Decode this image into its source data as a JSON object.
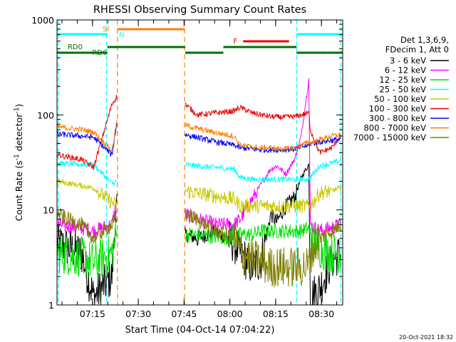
{
  "chart_data": {
    "type": "line",
    "title": "RHESSI Observing Summary Count Rates",
    "xlabel": "Start Time (04-Oct-14 07:04:22)",
    "ylabel_main": "Count Rate (s",
    "ylabel_sup1": "-1",
    "ylabel_mid": " detector",
    "ylabel_sup2": "-1",
    "ylabel_end": ")",
    "yscale": "log",
    "ylim": [
      1,
      1000
    ],
    "y_ticks": [
      1,
      10,
      100,
      1000
    ],
    "y_tick_labels": [
      "1",
      "10",
      "100",
      "1000"
    ],
    "xlim_min": [
      0,
      93.6
    ],
    "x_ticks_min": [
      11.63,
      26.63,
      41.63,
      56.63,
      71.63,
      86.63
    ],
    "x_tick_labels": [
      "07:15",
      "07:30",
      "07:45",
      "08:00",
      "08:15",
      "08:30"
    ],
    "gaps_min": [
      [
        19.8,
        42.0
      ]
    ],
    "series": [
      {
        "name": "3 - 6 keV",
        "color": "#000000",
        "x": [
          0,
          8,
          12,
          18,
          19.8,
          23,
          29,
          35,
          42,
          46,
          52,
          58,
          60,
          64,
          67,
          70,
          72,
          75,
          78,
          80,
          82.5,
          83,
          86,
          90,
          93
        ],
        "y": [
          4.5,
          3.5,
          1.2,
          2,
          16,
          null,
          null,
          null,
          5.5,
          5,
          6,
          4.5,
          3.5,
          2.5,
          3,
          9,
          7.5,
          11,
          14,
          22,
          30,
          1.2,
          1.5,
          3,
          3.5
        ]
      },
      {
        "name": "6 - 12 keV",
        "color": "#ff00ff",
        "x": [
          0,
          8,
          12,
          18,
          19.8,
          23,
          29,
          35,
          42,
          46,
          52,
          58,
          60,
          64,
          67,
          70,
          72,
          75,
          78,
          80,
          82.5,
          83,
          86,
          90,
          93
        ],
        "y": [
          7,
          6.5,
          6,
          7,
          13,
          null,
          null,
          null,
          9,
          8,
          7,
          7,
          8,
          13,
          19,
          27,
          29,
          24,
          35,
          60,
          240,
          7,
          6,
          6.5,
          7
        ]
      },
      {
        "name": "12 - 25 keV",
        "color": "#00e000",
        "x": [
          0,
          8,
          12,
          18,
          19.8,
          23,
          29,
          35,
          42,
          46,
          52,
          58,
          60,
          64,
          67,
          70,
          72,
          75,
          78,
          80,
          82.5,
          83,
          86,
          90,
          93
        ],
        "y": [
          3.5,
          3.2,
          2.8,
          3.5,
          6,
          null,
          null,
          null,
          5.5,
          5.5,
          5.2,
          5,
          5.5,
          5.5,
          6,
          6,
          6,
          6,
          6,
          6,
          6.5,
          5,
          4,
          3.5,
          3.5
        ]
      },
      {
        "name": "25 - 50 keV",
        "color": "#00ffff",
        "x": [
          0,
          8,
          12,
          18,
          19.8,
          23,
          29,
          35,
          42,
          46,
          52,
          58,
          60,
          64,
          67,
          70,
          72,
          75,
          78,
          80,
          82.5,
          83,
          86,
          90,
          93
        ],
        "y": [
          31,
          30,
          30,
          19,
          20,
          null,
          null,
          null,
          30,
          29,
          28,
          27,
          22,
          21,
          21,
          21,
          21,
          21,
          21,
          21,
          21,
          22,
          29,
          31,
          33
        ]
      },
      {
        "name": "50 - 100 keV",
        "color": "#c8c800",
        "x": [
          0,
          8,
          12,
          18,
          19.8,
          23,
          29,
          35,
          42,
          46,
          52,
          58,
          60,
          64,
          67,
          70,
          72,
          75,
          78,
          80,
          82.5,
          83,
          86,
          90,
          93
        ],
        "y": [
          20,
          18,
          17,
          12,
          11,
          null,
          null,
          null,
          16,
          15,
          14,
          13,
          11,
          11,
          11,
          11,
          11,
          11,
          11,
          11,
          11,
          11,
          15,
          16,
          17
        ]
      },
      {
        "name": "100 - 300 keV",
        "color": "#ee0000",
        "x": [
          0,
          8,
          12,
          18,
          19.8,
          23,
          29,
          35,
          42,
          46,
          52,
          58,
          60,
          64,
          67,
          70,
          72,
          75,
          78,
          80,
          82.5,
          83,
          86,
          90,
          93
        ],
        "y": [
          38,
          34,
          28,
          130,
          160,
          null,
          null,
          null,
          130,
          100,
          105,
          110,
          120,
          105,
          100,
          96,
          95,
          95,
          96,
          100,
          105,
          70,
          40,
          45,
          60
        ]
      },
      {
        "name": "300 - 800 keV",
        "color": "#0000ff",
        "x": [
          0,
          8,
          12,
          18,
          19.8,
          23,
          29,
          35,
          42,
          46,
          52,
          58,
          60,
          64,
          67,
          70,
          72,
          75,
          78,
          80,
          82.5,
          83,
          86,
          90,
          93
        ],
        "y": [
          63,
          60,
          58,
          38,
          90,
          null,
          null,
          null,
          62,
          58,
          52,
          48,
          45,
          44,
          43,
          43,
          43,
          43,
          44,
          46,
          48,
          50,
          52,
          54,
          56
        ]
      },
      {
        "name": "800 - 7000 keV",
        "color": "#ff8000",
        "x": [
          0,
          8,
          12,
          18,
          19.8,
          23,
          29,
          35,
          42,
          46,
          52,
          58,
          60,
          64,
          67,
          70,
          72,
          75,
          78,
          80,
          82.5,
          83,
          86,
          90,
          93
        ],
        "y": [
          75,
          70,
          66,
          42,
          95,
          null,
          null,
          null,
          78,
          72,
          65,
          60,
          48,
          46,
          45,
          45,
          44,
          44,
          45,
          48,
          52,
          50,
          55,
          60,
          62
        ]
      },
      {
        "name": "7000 - 15000 keV",
        "color": "#808000",
        "x": [
          0,
          8,
          12,
          18,
          19.8,
          23,
          29,
          35,
          42,
          46,
          52,
          58,
          60,
          64,
          67,
          70,
          72,
          75,
          78,
          80,
          82.5,
          83,
          86,
          90,
          93
        ],
        "y": [
          9,
          7,
          5,
          7,
          8,
          null,
          null,
          null,
          9,
          8,
          6,
          5,
          3.5,
          3,
          2.8,
          2.5,
          2.5,
          2.5,
          2.5,
          2.5,
          2.6,
          3.5,
          5,
          6,
          7
        ]
      }
    ],
    "legend_header": [
      "Det 1,3,6,9,",
      "FDecim 1, Att 0"
    ],
    "legend_position": "right",
    "flag_bars": [
      {
        "label": "SI",
        "color": "#ff8000",
        "spans": [
          [
            19.8,
            41.8
          ]
        ]
      },
      {
        "label": "N",
        "color": "#00ffff",
        "spans": []
      },
      {
        "label": "F",
        "color": "#ee0000",
        "spans": [
          [
            61,
            76
          ]
        ]
      },
      {
        "label": "",
        "color": "#00ffff",
        "spans": [
          [
            0,
            16.5
          ],
          [
            78.5,
            93.6
          ]
        ]
      },
      {
        "label": "RD0",
        "color": "#007000",
        "spans": [
          [
            16.5,
            42
          ],
          [
            54.5,
            78.5
          ]
        ]
      },
      {
        "label": "RD6",
        "color": "#007000",
        "spans": [
          [
            0,
            16.5
          ],
          [
            42,
            54.5
          ],
          [
            78.5,
            88.5
          ],
          [
            88.5,
            93.6
          ]
        ]
      }
    ],
    "vlines_orange_dashed": [
      19.8,
      41.8
    ],
    "vlines_cyan_dashed": [
      0.4,
      16.2,
      78.5,
      93.0
    ],
    "timestamp": "20-Oct-2021 18:32"
  }
}
